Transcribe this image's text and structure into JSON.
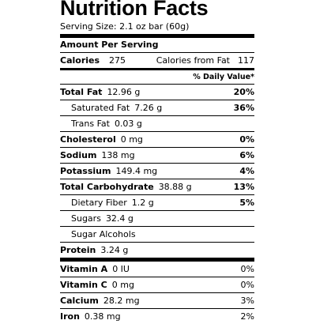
{
  "title": "Nutrition Facts",
  "serving_size": "Serving Size: 2.1 oz bar (60g)",
  "amount_per_serving": "Amount Per Serving",
  "calories": {
    "label": "Calories",
    "value": "275",
    "from_fat_label": "Calories from Fat",
    "from_fat_value": "117"
  },
  "daily_value_header": "% Daily Value*",
  "nutrients": [
    {
      "name": "Total Fat",
      "amount": "12.96 g",
      "dv": "20%"
    },
    {
      "name": "Saturated Fat",
      "amount": "7.26 g",
      "dv": "36%"
    },
    {
      "name": "Trans Fat",
      "amount": "0.03 g",
      "dv": ""
    },
    {
      "name": "Cholesterol",
      "amount": "0 mg",
      "dv": "0%"
    },
    {
      "name": "Sodium",
      "amount": "138 mg",
      "dv": "6%"
    },
    {
      "name": "Potassium",
      "amount": "149.4 mg",
      "dv": "4%"
    },
    {
      "name": "Total Carbohydrate",
      "amount": "38.88 g",
      "dv": "13%"
    },
    {
      "name": "Dietary Fiber",
      "amount": "1.2 g",
      "dv": "5%"
    },
    {
      "name": "Sugars",
      "amount": "32.4 g",
      "dv": ""
    },
    {
      "name": "Sugar Alcohols",
      "amount": "",
      "dv": ""
    },
    {
      "name": "Protein",
      "amount": "3.24 g",
      "dv": ""
    }
  ],
  "vitamins": [
    {
      "name": "Vitamin A",
      "amount": "0 IU",
      "dv": "0%"
    },
    {
      "name": "Vitamin C",
      "amount": "0 mg",
      "dv": "0%"
    },
    {
      "name": "Calcium",
      "amount": "28.2 mg",
      "dv": "3%"
    },
    {
      "name": "Iron",
      "amount": "0.38 mg",
      "dv": "2%"
    }
  ]
}
